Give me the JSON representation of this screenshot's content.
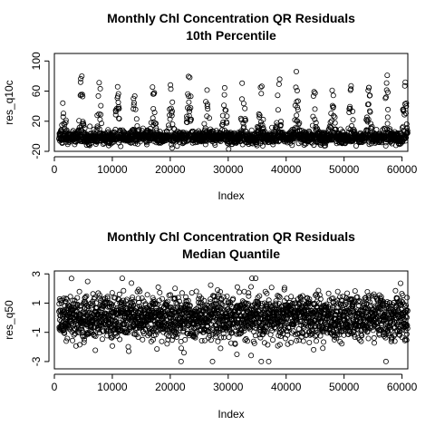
{
  "chart_data": [
    {
      "type": "scatter",
      "title_line1": "Monthly Chl Concentration QR Residuals",
      "title_line2": "10th Percentile",
      "xlabel": "Index",
      "ylabel": "res_q10c",
      "xlim": [
        0,
        61000
      ],
      "ylim": [
        -20,
        110
      ],
      "x_ticks": [
        0,
        10000,
        20000,
        30000,
        40000,
        50000,
        60000
      ],
      "x_tick_labels": [
        "0",
        "10000",
        "20000",
        "30000",
        "40000",
        "50000",
        "60000"
      ],
      "y_ticks": [
        -20,
        20,
        60,
        100
      ],
      "y_tick_labels": [
        "-20",
        "20",
        "60",
        "100"
      ],
      "n_points": 61000,
      "marker": "open-circle",
      "description": "Dense band of residuals near 0 with periodic seasonal spikes reaching roughly 60-100"
    },
    {
      "type": "scatter",
      "title_line1": "Monthly Chl Concentration QR Residuals",
      "title_line2": "Median Quantile",
      "xlabel": "Index",
      "ylabel": "res_q50",
      "xlim": [
        0,
        61000
      ],
      "ylim": [
        -3.5,
        3.2
      ],
      "x_ticks": [
        0,
        10000,
        20000,
        30000,
        40000,
        50000,
        60000
      ],
      "x_tick_labels": [
        "0",
        "10000",
        "20000",
        "30000",
        "40000",
        "50000",
        "60000"
      ],
      "y_ticks": [
        -3,
        -1,
        1,
        3
      ],
      "y_tick_labels": [
        "-3",
        "-1",
        "1",
        "3"
      ],
      "n_points": 61000,
      "marker": "open-circle",
      "description": "Dense band of residuals mostly between -2 and 2 with occasional points near -3 and 3"
    }
  ]
}
